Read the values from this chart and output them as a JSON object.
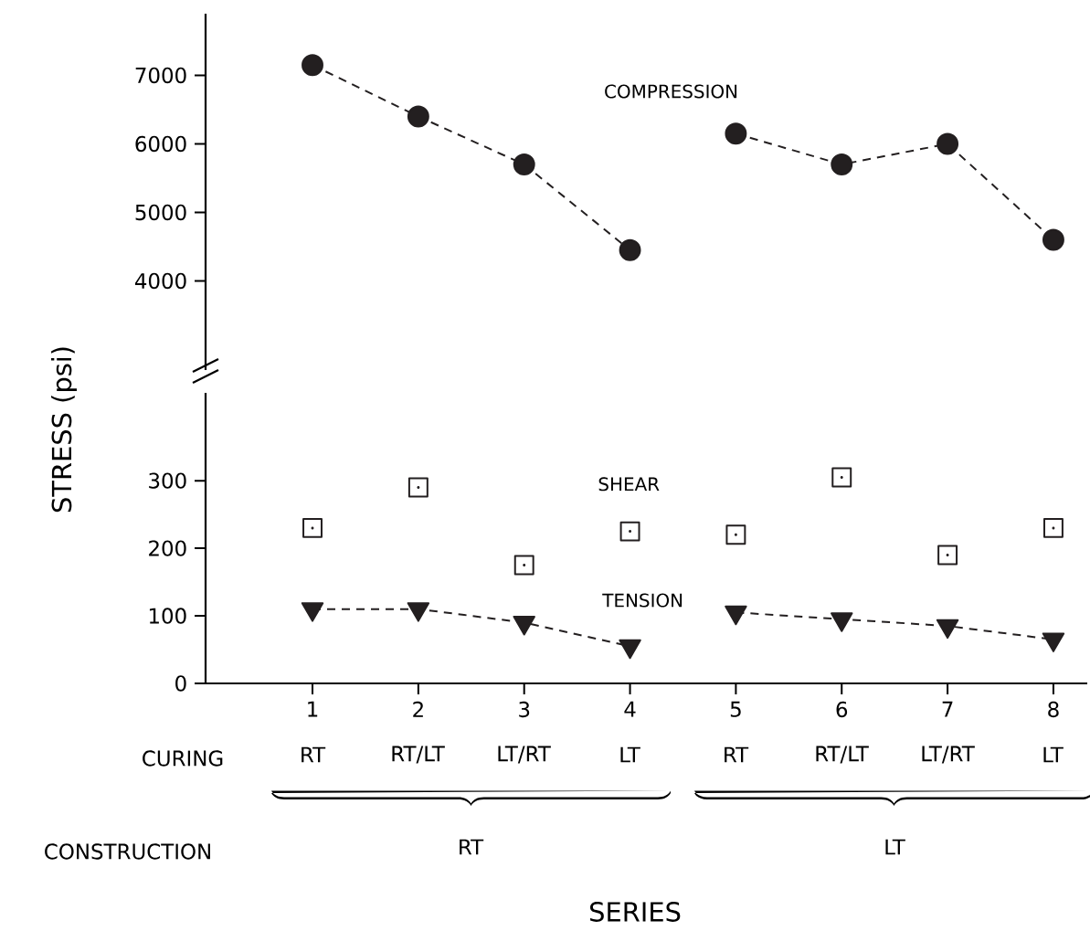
{
  "chart_data": [
    {
      "type": "line",
      "ylabel": "STRESS (psi)",
      "categories": [
        "1",
        "2",
        "3",
        "4",
        "5",
        "6",
        "7",
        "8"
      ],
      "ylim": [
        2700,
        7900
      ],
      "yticks": [
        4000,
        5000,
        6000,
        7000
      ],
      "tick_labels": "y",
      "series": [
        {
          "name": "COMPRESSION",
          "color": "#231f20",
          "marker": "circle",
          "line_style": "dashed",
          "values": [
            7150,
            6400,
            5700,
            4450,
            null,
            null,
            null,
            null
          ]
        },
        {
          "color": "#231f20",
          "marker": "circle",
          "line_style": "dashed",
          "values": [
            null,
            null,
            null,
            null,
            6150,
            5700,
            6000,
            4600
          ]
        }
      ]
    },
    {
      "type": "line",
      "xlabel": "SERIES",
      "categories": [
        "1",
        "2",
        "3",
        "4",
        "5",
        "6",
        "7",
        "8"
      ],
      "ylim": [
        0,
        430
      ],
      "yticks": [
        0,
        100,
        200,
        300
      ],
      "annotations": [
        "CURING",
        "RT",
        "RT/LT",
        "LT/RT",
        "LT",
        "RT",
        "RT/LT",
        "LT/RT",
        "LT",
        "CONSTRUCTION",
        "RT",
        "LT"
      ],
      "series": [
        {
          "name": "SHEAR",
          "type": "scatter",
          "color": "#231f20",
          "marker": "square",
          "values": [
            230,
            290,
            175,
            225,
            220,
            305,
            190,
            230
          ]
        },
        {
          "name": "TENSION",
          "color": "#231f20",
          "marker": "triangle",
          "line_style": "dashed",
          "values": [
            110,
            110,
            90,
            55,
            null,
            null,
            null,
            null
          ]
        },
        {
          "color": "#231f20",
          "marker": "triangle",
          "line_style": "dashed",
          "values": [
            null,
            null,
            null,
            null,
            105,
            95,
            85,
            65
          ]
        }
      ]
    }
  ]
}
